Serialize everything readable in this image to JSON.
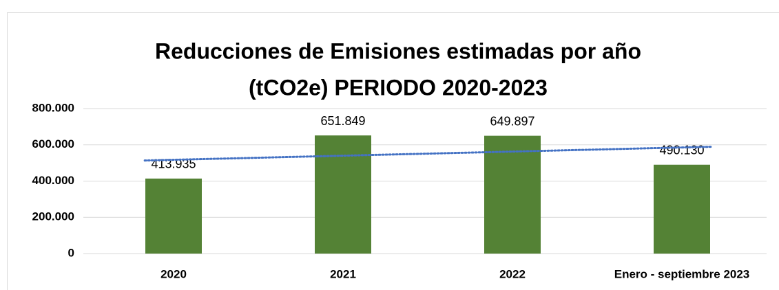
{
  "chart_data": {
    "type": "bar",
    "title": [
      "Reducciones de Emisiones estimadas por año",
      "(tCO2e) PERIODO 2020-2023"
    ],
    "categories": [
      "2020",
      "2021",
      "2022",
      "Enero - septiembre 2023"
    ],
    "values": [
      413935,
      651849,
      649897,
      490130
    ],
    "value_labels": [
      "413.935",
      "651.849",
      "649.897",
      "490.130"
    ],
    "color": "#548235",
    "ylim": [
      0,
      800000
    ],
    "yticks": [
      0,
      {
        "value": 200000,
        "label": "200.000"
      },
      {
        "value": 400000,
        "label": "400.000"
      },
      {
        "value": 600000,
        "label": "600.000"
      },
      {
        "value": 800000,
        "label": "800.000"
      }
    ],
    "grid": true,
    "trendline": {
      "type": "linear",
      "color": "#4472c4"
    }
  }
}
